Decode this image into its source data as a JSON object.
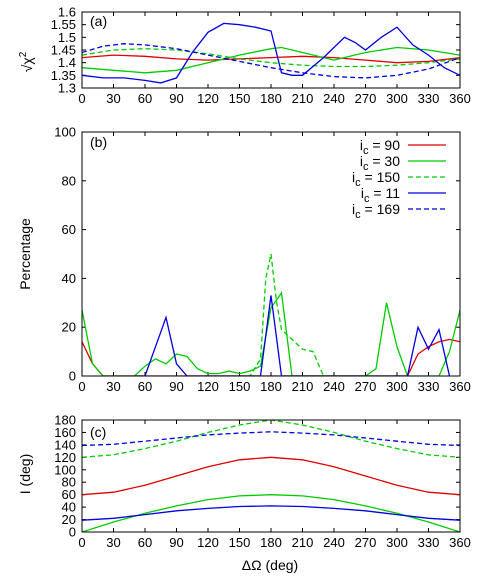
{
  "chart_data": [
    {
      "type": "line",
      "panel_tag": "(a)",
      "ylabel_root": "√",
      "ylabel_sym": "χ",
      "ylabel_sup": "2",
      "xlim": [
        0,
        360
      ],
      "ylim": [
        1.3,
        1.6
      ],
      "xticks": [
        "0",
        "30",
        "60",
        "90",
        "120",
        "150",
        "180",
        "210",
        "240",
        "270",
        "300",
        "330",
        "360"
      ],
      "yticks": [
        "1.3",
        "1.35",
        "1.4",
        "1.45",
        "1.5",
        "1.55",
        "1.6"
      ],
      "series": [
        {
          "color": "#e00000",
          "dash": false,
          "x": [
            0,
            30,
            60,
            90,
            120,
            150,
            180,
            210,
            240,
            270,
            300,
            330,
            360
          ],
          "y": [
            1.42,
            1.43,
            1.425,
            1.415,
            1.41,
            1.415,
            1.42,
            1.425,
            1.42,
            1.41,
            1.4,
            1.405,
            1.42
          ]
        },
        {
          "color": "#00cc00",
          "dash": false,
          "x": [
            0,
            30,
            60,
            90,
            120,
            150,
            180,
            190,
            210,
            240,
            270,
            300,
            330,
            360
          ],
          "y": [
            1.38,
            1.37,
            1.36,
            1.37,
            1.4,
            1.43,
            1.455,
            1.46,
            1.44,
            1.41,
            1.44,
            1.46,
            1.45,
            1.43
          ]
        },
        {
          "color": "#00cc00",
          "dash": true,
          "x": [
            0,
            30,
            60,
            90,
            120,
            150,
            180,
            210,
            240,
            270,
            300,
            330,
            360
          ],
          "y": [
            1.43,
            1.45,
            1.455,
            1.45,
            1.435,
            1.415,
            1.4,
            1.39,
            1.385,
            1.385,
            1.39,
            1.4,
            1.415
          ]
        },
        {
          "color": "#0000e0",
          "dash": false,
          "x": [
            0,
            20,
            40,
            60,
            75,
            90,
            105,
            120,
            135,
            150,
            165,
            180,
            190,
            200,
            210,
            230,
            250,
            260,
            270,
            285,
            300,
            315,
            330,
            345,
            360
          ],
          "y": [
            1.35,
            1.34,
            1.34,
            1.33,
            1.32,
            1.34,
            1.44,
            1.52,
            1.555,
            1.55,
            1.54,
            1.525,
            1.36,
            1.35,
            1.35,
            1.42,
            1.5,
            1.48,
            1.45,
            1.5,
            1.54,
            1.47,
            1.43,
            1.38,
            1.35
          ]
        },
        {
          "color": "#0000e0",
          "dash": true,
          "x": [
            0,
            20,
            40,
            60,
            90,
            120,
            150,
            180,
            210,
            240,
            270,
            300,
            330,
            360
          ],
          "y": [
            1.44,
            1.465,
            1.475,
            1.47,
            1.455,
            1.43,
            1.405,
            1.38,
            1.36,
            1.345,
            1.34,
            1.35,
            1.375,
            1.42
          ]
        }
      ]
    },
    {
      "type": "line",
      "panel_tag": "(b)",
      "ylabel": "Percentage",
      "xlim": [
        0,
        360
      ],
      "ylim": [
        0,
        100
      ],
      "xticks": [
        "0",
        "30",
        "60",
        "90",
        "120",
        "150",
        "180",
        "210",
        "240",
        "270",
        "300",
        "330",
        "360"
      ],
      "yticks": [
        "0",
        "20",
        "40",
        "60",
        "80",
        "100"
      ],
      "legend_position": "top-right",
      "series": [
        {
          "name": "i",
          "name_sub": "c",
          "name_rest": " = 90",
          "color": "#e00000",
          "dash": false,
          "x": [
            0,
            10,
            20,
            300,
            310,
            320,
            330,
            340,
            350,
            360
          ],
          "y": [
            14,
            5,
            0,
            0,
            0,
            9,
            12,
            14,
            15,
            14
          ]
        },
        {
          "name": "i",
          "name_sub": "c",
          "name_rest": " = 30",
          "color": "#00cc00",
          "dash": false,
          "x": [
            0,
            10,
            20,
            40,
            50,
            60,
            70,
            80,
            90,
            100,
            110,
            120,
            130,
            140,
            150,
            160,
            170,
            180,
            190,
            200,
            210,
            220,
            230,
            240,
            250,
            260,
            270,
            280,
            290,
            300,
            310,
            320,
            330,
            340,
            350,
            360
          ],
          "y": [
            27,
            5,
            0,
            0,
            0,
            4,
            7,
            5,
            9,
            8,
            3,
            1,
            1,
            2,
            1,
            2,
            4,
            28,
            34,
            0,
            0,
            0,
            0,
            0,
            0,
            0,
            0,
            3,
            30,
            12,
            0,
            0,
            0,
            0,
            10,
            27
          ]
        },
        {
          "name": "i",
          "name_sub": "c",
          "name_rest": " = 150",
          "color": "#00cc00",
          "dash": true,
          "x": [
            150,
            160,
            170,
            175,
            180,
            185,
            190,
            200,
            210,
            220,
            230
          ],
          "y": [
            0,
            0,
            7,
            40,
            50,
            31,
            19,
            15,
            11,
            10,
            0
          ]
        },
        {
          "name": "i",
          "name_sub": "c",
          "name_rest": " = 11",
          "color": "#0000e0",
          "dash": false,
          "x": [
            50,
            60,
            70,
            80,
            90,
            100,
            110,
            170,
            180,
            190,
            300,
            310,
            320,
            330,
            340,
            350
          ],
          "y": [
            0,
            0,
            12,
            24,
            5,
            0,
            0,
            0,
            33,
            0,
            0,
            0,
            20,
            11,
            19,
            0
          ]
        },
        {
          "name": "i",
          "name_sub": "c",
          "name_rest": " = 169",
          "color": "#0000e0",
          "dash": true,
          "x": [],
          "y": []
        }
      ]
    },
    {
      "type": "line",
      "panel_tag": "(c)",
      "xlabel": "ΔΩ (deg)",
      "ylabel": "I (deg)",
      "xlim": [
        0,
        360
      ],
      "ylim": [
        0,
        180
      ],
      "xticks": [
        "0",
        "30",
        "60",
        "90",
        "120",
        "150",
        "180",
        "210",
        "240",
        "270",
        "300",
        "330",
        "360"
      ],
      "yticks": [
        "0",
        "20",
        "40",
        "60",
        "80",
        "100",
        "120",
        "140",
        "160",
        "180"
      ],
      "series": [
        {
          "color": "#e00000",
          "dash": false,
          "x": [
            0,
            30,
            60,
            90,
            120,
            150,
            180,
            210,
            240,
            270,
            300,
            330,
            360
          ],
          "y": [
            60,
            64,
            75,
            90,
            105,
            116,
            120,
            116,
            105,
            90,
            75,
            64,
            60
          ]
        },
        {
          "color": "#00cc00",
          "dash": false,
          "x": [
            0,
            30,
            60,
            90,
            120,
            150,
            180,
            210,
            240,
            270,
            300,
            330,
            360
          ],
          "y": [
            0,
            16,
            30,
            42,
            52,
            58,
            60,
            58,
            52,
            42,
            30,
            16,
            0
          ]
        },
        {
          "color": "#00cc00",
          "dash": true,
          "x": [
            0,
            30,
            60,
            90,
            120,
            150,
            180,
            210,
            240,
            270,
            300,
            330,
            360
          ],
          "y": [
            120,
            124,
            134,
            146,
            160,
            172,
            180,
            172,
            160,
            146,
            134,
            124,
            120
          ]
        },
        {
          "color": "#0000e0",
          "dash": false,
          "x": [
            0,
            30,
            60,
            90,
            120,
            150,
            180,
            210,
            240,
            270,
            300,
            330,
            360
          ],
          "y": [
            19,
            22,
            28,
            34,
            38,
            41,
            42,
            41,
            38,
            34,
            28,
            22,
            19
          ]
        },
        {
          "color": "#0000e0",
          "dash": true,
          "x": [
            0,
            30,
            60,
            90,
            120,
            150,
            180,
            210,
            240,
            270,
            300,
            330,
            360
          ],
          "y": [
            139,
            141,
            146,
            151,
            156,
            159,
            161,
            159,
            156,
            151,
            146,
            141,
            139
          ]
        }
      ]
    }
  ]
}
